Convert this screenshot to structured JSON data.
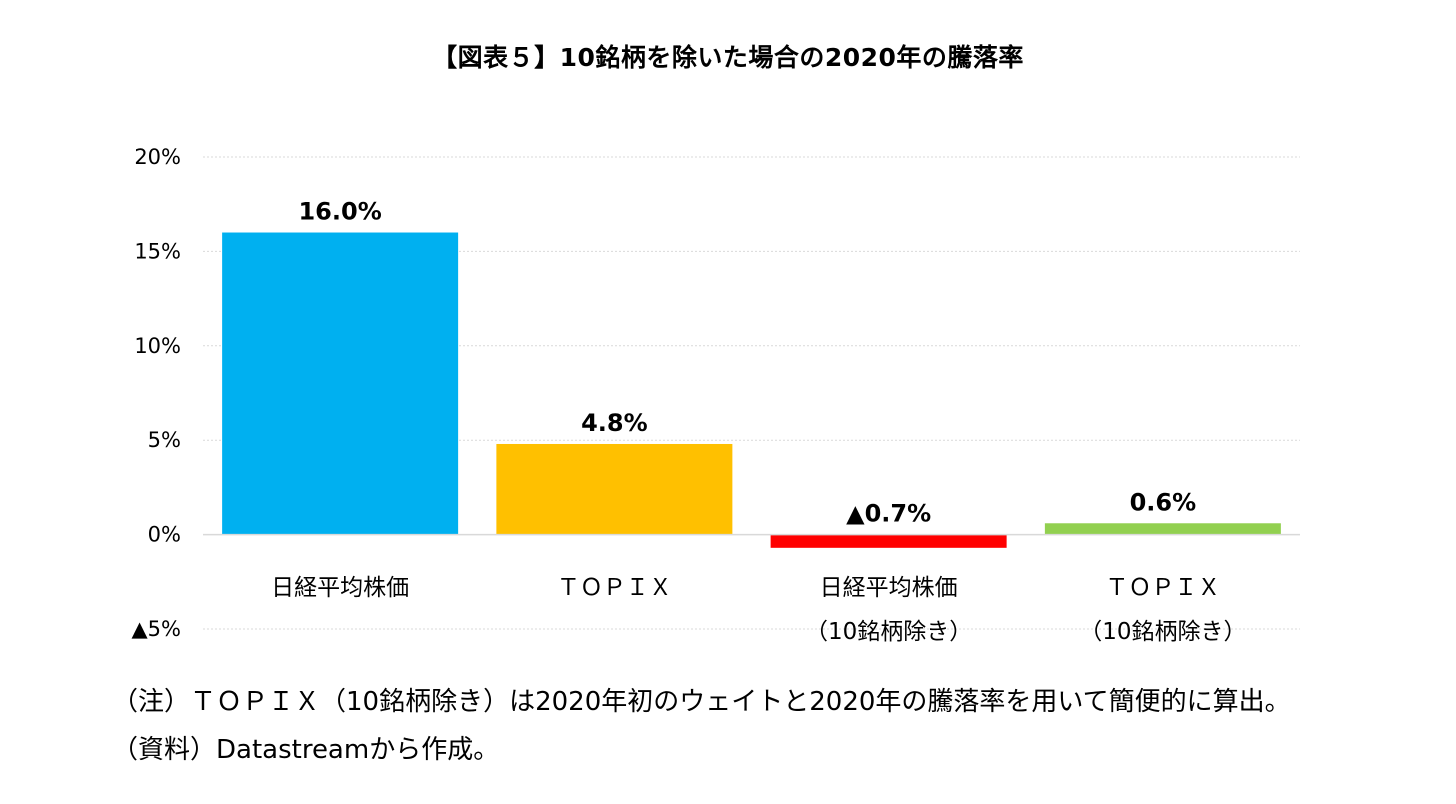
{
  "title": "【図表５】10銘柄を除いた場合の2020年の騰落率",
  "notes": [
    "（注）ＴＯＰＩＸ（10銘柄除き）は2020年初のウェイトと2020年の騰落率を用いて簡便的に算出。",
    "（資料）Datastreamから作成。"
  ],
  "chart_data": {
    "type": "bar",
    "title": "【図表５】10銘柄を除いた場合の2020年の騰落率",
    "categories": [
      [
        "日経平均株価"
      ],
      [
        "ＴＯＰＩＸ"
      ],
      [
        "日経平均株価",
        "（10銘柄除き）"
      ],
      [
        "ＴＯＰＩＸ",
        "（10銘柄除き）"
      ]
    ],
    "values": [
      16.0,
      4.8,
      -0.7,
      0.6
    ],
    "data_labels": [
      "16.0%",
      "4.8%",
      "▲0.7%",
      "0.6%"
    ],
    "colors": [
      "#00B0F0",
      "#FFC000",
      "#FF0000",
      "#92D050"
    ],
    "ylim": [
      -5,
      20
    ],
    "yticks": [
      20,
      15,
      10,
      5,
      0,
      -5
    ],
    "ytick_labels": [
      "20%",
      "15%",
      "10%",
      "5%",
      "0%",
      "▲5%"
    ],
    "grid": true,
    "legend": "none",
    "xlabel": "",
    "ylabel": ""
  }
}
